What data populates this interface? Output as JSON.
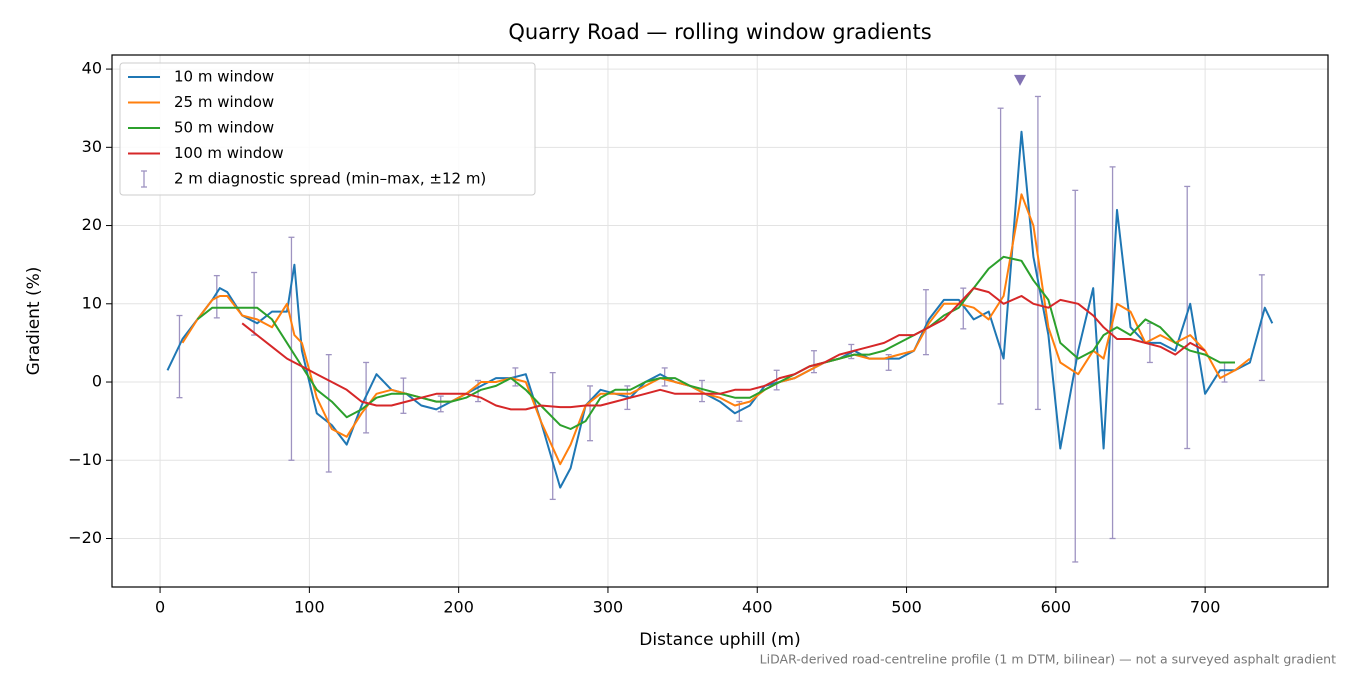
{
  "chart_data": {
    "type": "line",
    "title": "Quarry Road — rolling window gradients",
    "x_label": "Distance uphill (m)",
    "y_label": "Gradient (%)",
    "footnote": "LiDAR-derived road-centreline profile (1 m DTM, bilinear) — not a surveyed asphalt gradient",
    "xlim": [
      -32.2,
      782.3
    ],
    "ylim": [
      -26.2,
      41.8
    ],
    "xticks": [
      0,
      100,
      200,
      300,
      400,
      500,
      600,
      700
    ],
    "yticks": [
      {
        "value": -20,
        "label": "−20"
      },
      {
        "value": -10,
        "label": "−10"
      },
      0,
      10,
      20,
      30,
      40
    ],
    "grid": true,
    "legend": "upper left",
    "x": [
      5,
      15,
      25,
      35,
      40,
      45,
      55,
      65,
      75,
      85,
      90,
      95,
      105,
      115,
      125,
      135,
      145,
      155,
      165,
      175,
      185,
      195,
      205,
      215,
      225,
      235,
      245,
      255,
      268,
      275,
      285,
      295,
      305,
      315,
      325,
      335,
      345,
      355,
      365,
      375,
      385,
      395,
      405,
      415,
      425,
      435,
      445,
      455,
      465,
      475,
      485,
      495,
      505,
      515,
      525,
      535,
      545,
      555,
      565,
      577,
      585,
      595,
      603,
      615,
      625,
      632,
      641,
      650,
      660,
      670,
      680,
      690,
      700,
      710,
      720,
      730,
      740,
      745
    ],
    "series": [
      {
        "name": "10 m window",
        "color": "#1f77b4",
        "values": [
          1.5,
          5.5,
          8,
          10.5,
          12,
          11.5,
          8.5,
          7.5,
          9,
          9,
          15,
          4,
          -4,
          -5.5,
          -8,
          -3,
          1,
          -1,
          -1.5,
          -3,
          -3.5,
          -2.5,
          -1.5,
          -0.5,
          0.5,
          0.5,
          1,
          -5,
          -13.5,
          -11,
          -3,
          -1,
          -1.5,
          -2,
          0,
          1,
          0,
          -0.5,
          -1.5,
          -2.5,
          -4,
          -3,
          -0.5,
          0,
          0.5,
          1.5,
          2.5,
          3,
          4,
          3,
          3,
          3,
          4,
          8,
          10.5,
          10.5,
          8,
          9,
          3,
          32,
          16,
          6,
          -8.5,
          4,
          12,
          -8.5,
          22,
          7,
          5,
          5,
          4,
          10,
          -1.5,
          1.5,
          1.5,
          2.5,
          9.5,
          7.5
        ]
      },
      {
        "name": "25 m window",
        "color": "#ff7f0e",
        "values": [
          null,
          5,
          8,
          10.5,
          11,
          11,
          8.5,
          8,
          7,
          10,
          6,
          5,
          -2,
          -6,
          -7,
          -4,
          -1.5,
          -1,
          -1.5,
          -2,
          -2.5,
          -2.5,
          -1.5,
          0,
          0,
          0.5,
          0,
          -5,
          -10.5,
          -8,
          -3,
          -1.5,
          -1.5,
          -1.5,
          -0.5,
          0.5,
          0,
          -0.5,
          -1.5,
          -2,
          -3,
          -2.5,
          -1,
          0,
          0.5,
          1.5,
          2.5,
          3,
          3.5,
          3,
          3,
          3.5,
          4,
          7.5,
          10,
          10,
          9.5,
          8,
          11,
          24,
          20,
          7,
          2.5,
          1,
          4,
          3,
          10,
          9,
          5,
          6,
          5,
          6,
          4,
          0.5,
          1.5,
          3,
          null,
          null
        ]
      },
      {
        "name": "50 m window",
        "color": "#2ca02c",
        "values": [
          null,
          null,
          8,
          9.5,
          9.5,
          9.5,
          9.5,
          9.5,
          8,
          5,
          3.5,
          2,
          -1,
          -2.5,
          -4.5,
          -3.5,
          -2,
          -1.5,
          -1.5,
          -2,
          -2.5,
          -2.5,
          -2,
          -1,
          -0.5,
          0.5,
          -1,
          -3,
          -5.5,
          -6,
          -5,
          -2,
          -1,
          -1,
          0,
          0.5,
          0.5,
          -0.5,
          -1,
          -1.5,
          -2,
          -2,
          -1,
          0,
          1,
          2,
          2.5,
          3,
          3.5,
          3.5,
          4,
          5,
          6,
          7,
          8.5,
          9.5,
          12,
          14.5,
          16,
          15.5,
          13,
          10.5,
          5,
          3,
          4,
          6,
          7,
          6,
          8,
          7,
          5,
          4,
          3.5,
          2.5,
          2.5,
          null,
          null,
          null
        ]
      },
      {
        "name": "100 m window",
        "color": "#d62728",
        "values": [
          null,
          null,
          null,
          null,
          null,
          null,
          7.5,
          6,
          4.5,
          3,
          2.5,
          2,
          1,
          0,
          -1,
          -2.5,
          -3,
          -3,
          -2.5,
          -2,
          -1.5,
          -1.5,
          -1.5,
          -2,
          -3,
          -3.5,
          -3.5,
          -3,
          -3.2,
          -3.2,
          -3,
          -3,
          -2.5,
          -2,
          -1.5,
          -1,
          -1.5,
          -1.5,
          -1.5,
          -1.5,
          -1,
          -1,
          -0.5,
          0.5,
          1,
          2,
          2.5,
          3.5,
          4,
          4.5,
          5,
          6,
          6,
          7,
          8,
          10,
          12,
          11.5,
          10,
          11,
          10,
          9.5,
          10.5,
          10,
          8.5,
          7,
          5.5,
          5.5,
          5,
          4.5,
          3.5,
          5,
          4,
          null,
          null,
          null,
          null,
          null
        ]
      }
    ],
    "errorbars": {
      "name": "2 m diagnostic spread (min–max, ±12 m)",
      "color": "#9e93c1",
      "x": [
        13,
        38,
        63,
        88,
        113,
        138,
        163,
        188,
        213,
        238,
        263,
        288,
        313,
        338,
        363,
        388,
        413,
        438,
        463,
        488,
        513,
        538,
        563,
        588,
        613,
        638,
        663,
        688,
        713,
        738
      ],
      "min": [
        -2,
        8.2,
        6,
        -10,
        -11.5,
        -6.5,
        -4,
        -3.8,
        -2.5,
        -0.5,
        -15,
        -7.5,
        -3.5,
        -0.5,
        -2.5,
        -5,
        -1,
        1.2,
        3,
        1.5,
        3.5,
        6.8,
        -2.8,
        -3.5,
        -23,
        -20,
        2.5,
        -8.5,
        0,
        0.2
      ],
      "max": [
        8.5,
        13.6,
        14,
        18.5,
        3.5,
        2.5,
        0.5,
        -1.8,
        0.2,
        1.8,
        1.2,
        -0.5,
        -0.5,
        1.8,
        0.2,
        -2.5,
        1.5,
        4,
        4.8,
        3.5,
        11.8,
        12,
        35,
        36.5,
        24.5,
        27.5,
        7.5,
        25,
        2.5,
        13.7
      ]
    },
    "peak_marker": {
      "x": 576,
      "y": 38.5,
      "color": "#8172b3"
    }
  }
}
